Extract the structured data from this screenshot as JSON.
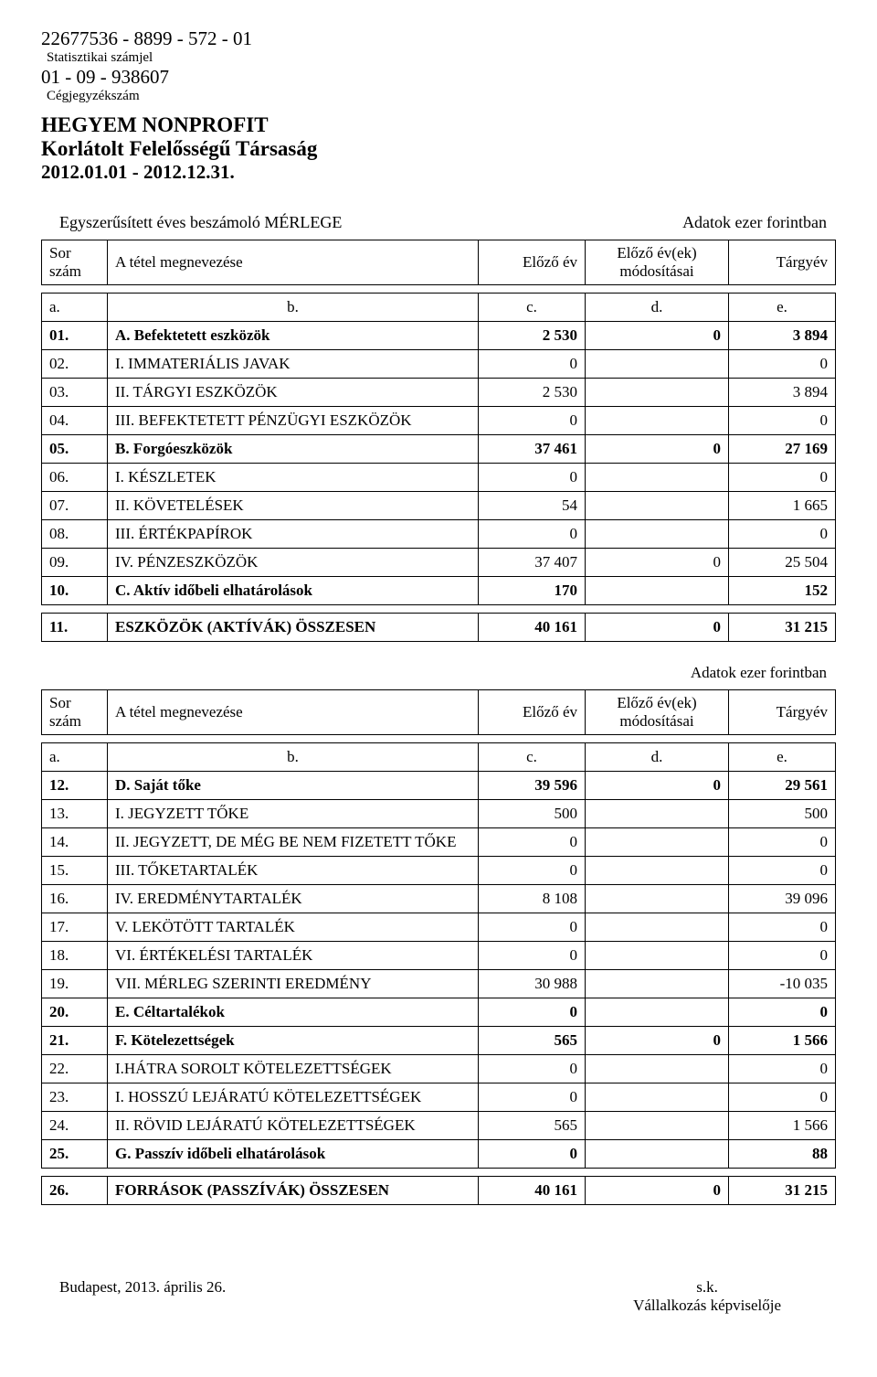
{
  "header": {
    "stat_number": "22677536 - 8899 - 572 - 01",
    "stat_label": "Statisztikai számjel",
    "reg_number": "01 - 09 - 938607",
    "reg_label": "Cégjegyzékszám",
    "company_name": "HEGYEM NONPROFIT",
    "company_form": "Korlátolt Felelősségű Társaság",
    "period": "2012.01.01 - 2012.12.31."
  },
  "report": {
    "title": "Egyszerűsített éves beszámoló MÉRLEGE",
    "units": "Adatok ezer forintban"
  },
  "columns": {
    "sor": "Sor szám",
    "name": "A tétel megnevezése",
    "prev": "Előző év",
    "mod": "Előző év(ek) módosításai",
    "cur": "Tárgyév"
  },
  "letters": {
    "a": "a.",
    "b": "b.",
    "c": "c.",
    "d": "d.",
    "e": "e."
  },
  "table1": [
    {
      "n": "01.",
      "name": "A. Befektetett eszközök",
      "prev": "2 530",
      "mod": "0",
      "cur": "3 894",
      "bold": true
    },
    {
      "n": "02.",
      "name": "I. IMMATERIÁLIS JAVAK",
      "prev": "0",
      "mod": "",
      "cur": "0"
    },
    {
      "n": "03.",
      "name": "II. TÁRGYI ESZKÖZÖK",
      "prev": "2 530",
      "mod": "",
      "cur": "3 894"
    },
    {
      "n": "04.",
      "name": "III. BEFEKTETETT PÉNZÜGYI ESZKÖZÖK",
      "prev": "0",
      "mod": "",
      "cur": "0"
    },
    {
      "n": "05.",
      "name": "B. Forgóeszközök",
      "prev": "37 461",
      "mod": "0",
      "cur": "27 169",
      "bold": true
    },
    {
      "n": "06.",
      "name": "I. KÉSZLETEK",
      "prev": "0",
      "mod": "",
      "cur": "0"
    },
    {
      "n": "07.",
      "name": "II. KÖVETELÉSEK",
      "prev": "54",
      "mod": "",
      "cur": "1 665"
    },
    {
      "n": "08.",
      "name": "III. ÉRTÉKPAPÍROK",
      "prev": "0",
      "mod": "",
      "cur": "0"
    },
    {
      "n": "09.",
      "name": "IV. PÉNZESZKÖZÖK",
      "prev": "37 407",
      "mod": "0",
      "cur": "25 504"
    },
    {
      "n": "10.",
      "name": "C. Aktív időbeli elhatárolások",
      "prev": "170",
      "mod": "",
      "cur": "152",
      "bold": true
    }
  ],
  "table1_total": {
    "n": "11.",
    "name": "ESZKÖZÖK (AKTÍVÁK) ÖSSZESEN",
    "prev": "40 161",
    "mod": "0",
    "cur": "31 215"
  },
  "table2": [
    {
      "n": "12.",
      "name": "D. Saját tőke",
      "prev": "39 596",
      "mod": "0",
      "cur": "29 561",
      "bold": true
    },
    {
      "n": "13.",
      "name": "I. JEGYZETT TŐKE",
      "prev": "500",
      "mod": "",
      "cur": "500"
    },
    {
      "n": "14.",
      "name": "II. JEGYZETT, DE MÉG BE NEM FIZETETT TŐKE",
      "prev": "0",
      "mod": "",
      "cur": "0"
    },
    {
      "n": "15.",
      "name": "III. TŐKETARTALÉK",
      "prev": "0",
      "mod": "",
      "cur": "0"
    },
    {
      "n": "16.",
      "name": "IV. EREDMÉNYTARTALÉK",
      "prev": "8 108",
      "mod": "",
      "cur": "39 096"
    },
    {
      "n": "17.",
      "name": "V. LEKÖTÖTT TARTALÉK",
      "prev": "0",
      "mod": "",
      "cur": "0"
    },
    {
      "n": "18.",
      "name": "VI. ÉRTÉKELÉSI TARTALÉK",
      "prev": "0",
      "mod": "",
      "cur": "0"
    },
    {
      "n": "19.",
      "name": "VII. MÉRLEG SZERINTI EREDMÉNY",
      "prev": "30 988",
      "mod": "",
      "cur": "-10 035"
    },
    {
      "n": "20.",
      "name": "E. Céltartalékok",
      "prev": "0",
      "mod": "",
      "cur": "0",
      "bold": true
    },
    {
      "n": "21.",
      "name": "F. Kötelezettségek",
      "prev": "565",
      "mod": "0",
      "cur": "1 566",
      "bold": true
    },
    {
      "n": "22.",
      "name": "I.HÁTRA SOROLT KÖTELEZETTSÉGEK",
      "prev": "0",
      "mod": "",
      "cur": "0"
    },
    {
      "n": "23.",
      "name": "I. HOSSZÚ LEJÁRATÚ KÖTELEZETTSÉGEK",
      "prev": "0",
      "mod": "",
      "cur": "0"
    },
    {
      "n": "24.",
      "name": "II. RÖVID LEJÁRATÚ KÖTELEZETTSÉGEK",
      "prev": "565",
      "mod": "",
      "cur": "1 566"
    },
    {
      "n": "25.",
      "name": "G. Passzív időbeli elhatárolások",
      "prev": "0",
      "mod": "",
      "cur": "88",
      "bold": true
    }
  ],
  "table2_total": {
    "n": "26.",
    "name": "FORRÁSOK (PASSZÍVÁK) ÖSSZESEN",
    "prev": "40 161",
    "mod": "0",
    "cur": "31 215"
  },
  "footer": {
    "place_date": "Budapest, 2013. április 26.",
    "sk": "s.k.",
    "signer": "Vállalkozás képviselője"
  }
}
